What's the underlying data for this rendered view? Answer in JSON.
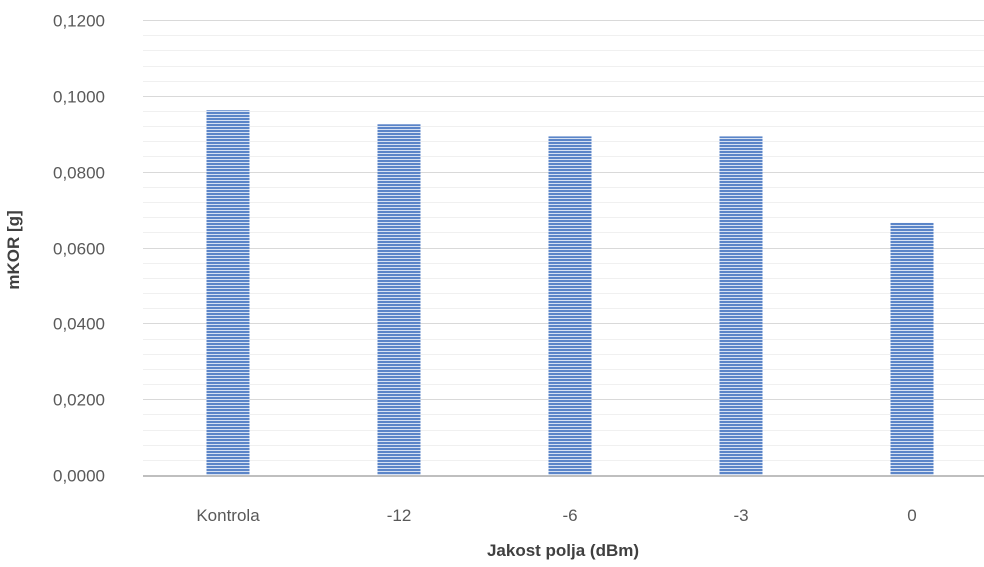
{
  "chart_data": {
    "type": "bar",
    "categories": [
      "Kontrola",
      "-12",
      "-6",
      "-3",
      "0"
    ],
    "values": [
      0.0962,
      0.0925,
      0.0893,
      0.0893,
      0.0665
    ],
    "y_ticks": [
      "0,0000",
      "0,0200",
      "0,0400",
      "0,0600",
      "0,0800",
      "0,1000",
      "0,1200"
    ],
    "ylim": [
      0,
      0.12
    ],
    "major_step": 0.02,
    "minor_step": 0.004,
    "xlabel": "Jakost polja (dBm)",
    "ylabel": "mKOR [g]",
    "grid": true,
    "legend": "none",
    "colors": {
      "bar_fill": "#5b85c8",
      "bar_stripe": "#d6e1f3",
      "major_grid": "#d9d9d9",
      "minor_grid": "#f0f0f0",
      "axis_line": "#bfbfbf"
    }
  }
}
